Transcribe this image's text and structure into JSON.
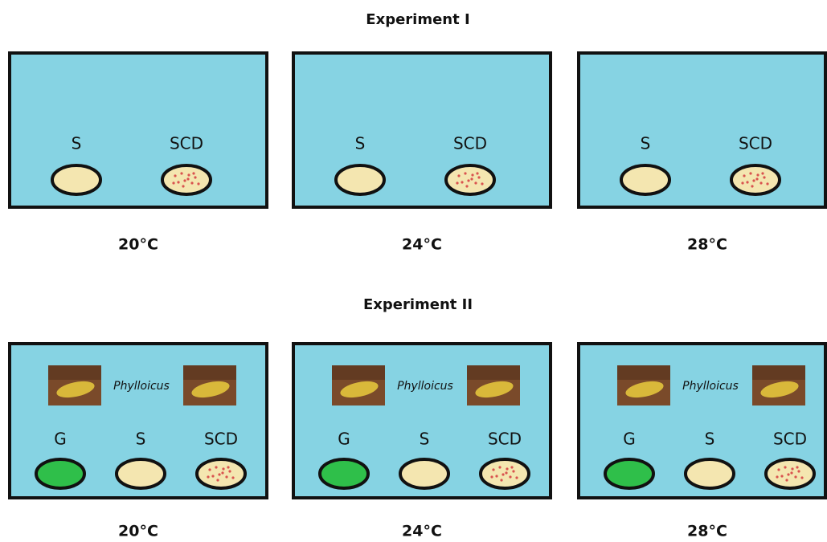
{
  "experiments": [
    {
      "title": "Experiment I",
      "panels": [
        {
          "labels": [
            "S",
            "SCD"
          ],
          "temperature": "20°C"
        },
        {
          "labels": [
            "S",
            "SCD"
          ],
          "temperature": "24°C"
        },
        {
          "labels": [
            "S",
            "SCD"
          ],
          "temperature": "28°C"
        }
      ]
    },
    {
      "title": "Experiment II",
      "panels": [
        {
          "organism": "Phylloicus",
          "labels": [
            "G",
            "S",
            "SCD"
          ],
          "temperature": "20°C"
        },
        {
          "organism": "Phylloicus",
          "labels": [
            "G",
            "S",
            "SCD"
          ],
          "temperature": "24°C"
        },
        {
          "organism": "Phylloicus",
          "labels": [
            "G",
            "S",
            "SCD"
          ],
          "temperature": "28°C"
        }
      ]
    }
  ]
}
